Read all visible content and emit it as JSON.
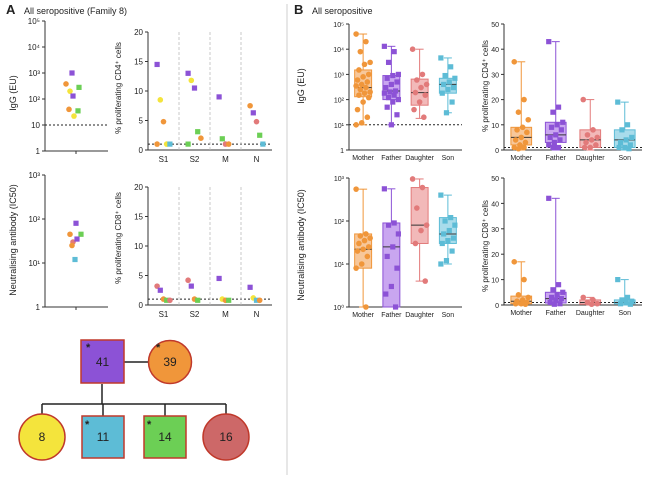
{
  "panelA": {
    "letter": "A",
    "title": "All seropositive (Family 8)",
    "igg": {
      "ylabel": "IgG (EU)",
      "yticks": [
        "1",
        "10",
        "10²",
        "10³",
        "10⁴",
        "10⁵"
      ],
      "points": [
        {
          "member": "Father",
          "value": 1000
        },
        {
          "member": "Son",
          "value": 280
        },
        {
          "member": "Mother",
          "value": 380
        },
        {
          "member": "Daughter",
          "value": 200
        },
        {
          "member": "Father",
          "value": 130
        },
        {
          "member": "Son",
          "value": 35
        },
        {
          "member": "Mother",
          "value": 40
        },
        {
          "member": "Daughter",
          "value": 22
        }
      ]
    },
    "nab": {
      "ylabel": "Neutralising antibody (IC50)",
      "yticks": [
        "1",
        "10¹",
        "10²",
        "10³"
      ],
      "points": [
        {
          "member": "Father",
          "value": 80
        },
        {
          "member": "Mother",
          "value": 45
        },
        {
          "member": "Daughter",
          "value": 30
        },
        {
          "member": "Son",
          "value": 45
        },
        {
          "member": "Father",
          "value": 35
        },
        {
          "member": "Mother",
          "value": 25
        },
        {
          "member": "Son",
          "value": 12
        }
      ]
    },
    "cd4": {
      "ylabel": "% proliferating CD4⁺ cells",
      "yticks": [
        "0",
        "5",
        "10",
        "15",
        "20"
      ],
      "categories": [
        "S1",
        "S2",
        "M",
        "N"
      ],
      "points": [
        {
          "cat": "S1",
          "member": "Father",
          "value": 14.5
        },
        {
          "cat": "S1",
          "member": "Daughter",
          "value": 8.5
        },
        {
          "cat": "S1",
          "member": "Mother",
          "value": 4.8
        },
        {
          "cat": "S1",
          "member": "Daughter",
          "value": 1.0
        },
        {
          "cat": "S1",
          "member": "Son",
          "value": 1.0
        },
        {
          "cat": "S1",
          "member": "Mother",
          "value": 1.0
        },
        {
          "cat": "S2",
          "member": "Father",
          "value": 13.0
        },
        {
          "cat": "S2",
          "member": "Daughter",
          "value": 11.8
        },
        {
          "cat": "S2",
          "member": "Father",
          "value": 10.5
        },
        {
          "cat": "S2",
          "member": "Son",
          "value": 3.1
        },
        {
          "cat": "S2",
          "member": "Mother",
          "value": 2.0
        },
        {
          "cat": "S2",
          "member": "Son",
          "value": 1.0
        },
        {
          "cat": "M",
          "member": "Father",
          "value": 9.0
        },
        {
          "cat": "M",
          "member": "Son",
          "value": 1.9
        },
        {
          "cat": "M",
          "member": "Daughter",
          "value": 1.0
        },
        {
          "cat": "M",
          "member": "Mother",
          "value": 1.0
        },
        {
          "cat": "N",
          "member": "Mother",
          "value": 7.5
        },
        {
          "cat": "N",
          "member": "Father",
          "value": 6.3
        },
        {
          "cat": "N",
          "member": "Daughter",
          "value": 4.8
        },
        {
          "cat": "N",
          "member": "Son",
          "value": 2.5
        },
        {
          "cat": "N",
          "member": "Son",
          "value": 1.0
        }
      ]
    },
    "cd8": {
      "ylabel": "% proliferating CD8⁺ cells",
      "yticks": [
        "0",
        "5",
        "10",
        "15",
        "20"
      ],
      "categories": [
        "S1",
        "S2",
        "M",
        "N"
      ],
      "points": [
        {
          "cat": "S1",
          "member": "Daughter",
          "value": 3.2
        },
        {
          "cat": "S1",
          "member": "Father",
          "value": 2.5
        },
        {
          "cat": "S1",
          "member": "Mother",
          "value": 1.0
        },
        {
          "cat": "S1",
          "member": "Son",
          "value": 0.8
        },
        {
          "cat": "S1",
          "member": "Daughter",
          "value": 0.8
        },
        {
          "cat": "S2",
          "member": "Daughter",
          "value": 4.2
        },
        {
          "cat": "S2",
          "member": "Father",
          "value": 3.2
        },
        {
          "cat": "S2",
          "member": "Mother",
          "value": 1.0
        },
        {
          "cat": "S2",
          "member": "Son",
          "value": 0.8
        },
        {
          "cat": "M",
          "member": "Father",
          "value": 4.5
        },
        {
          "cat": "M",
          "member": "Daughter",
          "value": 1.0
        },
        {
          "cat": "M",
          "member": "Mother",
          "value": 0.8
        },
        {
          "cat": "M",
          "member": "Son",
          "value": 0.8
        },
        {
          "cat": "N",
          "member": "Father",
          "value": 3.0
        },
        {
          "cat": "N",
          "member": "Daughter",
          "value": 1.2
        },
        {
          "cat": "N",
          "member": "Son",
          "value": 0.8
        },
        {
          "cat": "N",
          "member": "Mother",
          "value": 0.8
        }
      ]
    }
  },
  "pedigree": {
    "father": {
      "age": "41",
      "star": "*",
      "color": "#8c52d6"
    },
    "mother": {
      "age": "39",
      "star": "*",
      "color": "#f0963a"
    },
    "children": [
      {
        "age": "8",
        "shape": "circle",
        "star": "",
        "color": "#f4e43c"
      },
      {
        "age": "11",
        "shape": "square",
        "star": "*",
        "color": "#5dbcd6"
      },
      {
        "age": "14",
        "shape": "square",
        "star": "*",
        "color": "#6ccf55"
      },
      {
        "age": "16",
        "shape": "circle",
        "star": "",
        "color": "#cd6868"
      }
    ]
  },
  "panelB": {
    "letter": "B",
    "title": "All seropositive",
    "igg": {
      "ylabel": "IgG (EU)",
      "yticks": [
        "1",
        "10¹",
        "10²",
        "10³",
        "10⁴",
        "10⁵"
      ]
    },
    "nab": {
      "ylabel": "Neutralising antibody (IC50)",
      "yticks": [
        "10⁰",
        "10¹",
        "10²",
        "10³"
      ]
    },
    "cd4": {
      "ylabel": "% proliferating CD4⁺ cells",
      "yticks": [
        "0",
        "10",
        "20",
        "30",
        "40",
        "50"
      ]
    },
    "cd8": {
      "ylabel": "% proliferating CD8⁺ cells",
      "yticks": [
        "0",
        "10",
        "20",
        "30",
        "40",
        "50"
      ]
    }
  },
  "colors": {
    "Mother": "#f0963a",
    "Father": "#8c52d6",
    "Daughter": "#e27a7a",
    "Son": "#5dbcd6",
    "yellow": "#f4e43c",
    "green": "#6ccf55"
  },
  "chart_data": [
    {
      "type": "scatter",
      "panel": "A",
      "title": "All seropositive (Family 8)",
      "ylabel": "IgG (EU)",
      "yscale": "log",
      "ylim": [
        1,
        100000
      ],
      "threshold": 10,
      "values": [
        1000,
        280,
        380,
        200,
        130,
        35,
        40,
        22
      ]
    },
    {
      "type": "scatter",
      "panel": "A",
      "ylabel": "% proliferating CD4⁺ cells",
      "categories": [
        "S1",
        "S2",
        "M",
        "N"
      ],
      "ylim": [
        0,
        20
      ],
      "threshold": 1
    },
    {
      "type": "scatter",
      "panel": "A",
      "ylabel": "Neutralising antibody (IC50)",
      "yscale": "log",
      "ylim": [
        1,
        1000
      ],
      "values": [
        80,
        45,
        30,
        45,
        35,
        25,
        12
      ]
    },
    {
      "type": "scatter",
      "panel": "A",
      "ylabel": "% proliferating CD8⁺ cells",
      "categories": [
        "S1",
        "S2",
        "M",
        "N"
      ],
      "ylim": [
        0,
        20
      ],
      "threshold": 1
    },
    {
      "type": "box",
      "panel": "B",
      "title": "All seropositive",
      "ylabel": "IgG (EU)",
      "yscale": "log",
      "ylim": [
        1,
        100000
      ],
      "threshold": 10,
      "categories": [
        "Mother",
        "Father",
        "Daughter",
        "Son"
      ],
      "series": [
        {
          "name": "Mother",
          "min": 10,
          "q1": 130,
          "median": 300,
          "q3": 1500,
          "max": 40000,
          "points": [
            40000,
            20000,
            8000,
            3000,
            2500,
            1500,
            1000,
            800,
            600,
            500,
            400,
            350,
            300,
            250,
            200,
            180,
            150,
            120,
            80,
            40,
            20,
            12,
            10
          ]
        },
        {
          "name": "Father",
          "min": 10,
          "q1": 100,
          "median": 220,
          "q3": 900,
          "max": 13000,
          "points": [
            13000,
            8000,
            3000,
            1000,
            900,
            700,
            500,
            400,
            300,
            220,
            200,
            180,
            150,
            120,
            100,
            80,
            50,
            25,
            10
          ]
        },
        {
          "name": "Daughter",
          "min": 18,
          "q1": 60,
          "median": 190,
          "q3": 650,
          "max": 10000,
          "points": [
            10000,
            1000,
            600,
            400,
            300,
            190,
            150,
            80,
            40,
            20
          ]
        },
        {
          "name": "Son",
          "min": 30,
          "q1": 180,
          "median": 400,
          "q3": 700,
          "max": 4500,
          "points": [
            4500,
            2000,
            900,
            700,
            500,
            400,
            300,
            250,
            180,
            80,
            30
          ]
        }
      ]
    },
    {
      "type": "box",
      "panel": "B",
      "ylabel": "% proliferating CD4⁺ cells",
      "ylim": [
        0,
        50
      ],
      "threshold": 1,
      "categories": [
        "Mother",
        "Father",
        "Daughter",
        "Son"
      ],
      "series": [
        {
          "name": "Mother",
          "min": 0,
          "q1": 2,
          "median": 5,
          "q3": 9,
          "max": 35,
          "points": [
            35,
            20,
            15,
            12,
            9,
            8,
            7,
            5,
            4,
            3,
            2,
            1,
            1,
            0.5
          ]
        },
        {
          "name": "Father",
          "min": 0,
          "q1": 3,
          "median": 6,
          "q3": 11,
          "max": 43,
          "points": [
            43,
            17,
            15,
            11,
            10,
            9,
            8,
            6,
            5,
            4,
            3,
            2,
            1,
            1
          ]
        },
        {
          "name": "Daughter",
          "min": 0,
          "q1": 1,
          "median": 4,
          "q3": 8,
          "max": 20,
          "points": [
            20,
            8,
            6,
            5,
            4,
            3,
            2,
            1,
            1
          ]
        },
        {
          "name": "Son",
          "min": 0,
          "q1": 1,
          "median": 4,
          "q3": 8,
          "max": 19,
          "points": [
            19,
            10,
            8,
            5,
            4,
            3,
            2,
            1,
            1,
            0.5
          ]
        }
      ]
    },
    {
      "type": "box",
      "panel": "B",
      "ylabel": "Neutralising antibody (IC50)",
      "yscale": "log",
      "ylim": [
        1,
        1000
      ],
      "categories": [
        "Mother",
        "Father",
        "Daughter",
        "Son"
      ],
      "series": [
        {
          "name": "Mother",
          "min": 1,
          "q1": 8,
          "median": 22,
          "q3": 50,
          "max": 550,
          "points": [
            550,
            50,
            45,
            40,
            35,
            30,
            25,
            22,
            20,
            15,
            10,
            8,
            1
          ]
        },
        {
          "name": "Father",
          "min": 1,
          "q1": 1,
          "median": 25,
          "q3": 90,
          "max": 560,
          "points": [
            560,
            90,
            80,
            50,
            25,
            15,
            8,
            3,
            2,
            1
          ]
        },
        {
          "name": "Daughter",
          "min": 4,
          "q1": 30,
          "median": 80,
          "q3": 600,
          "max": 950,
          "points": [
            950,
            600,
            200,
            80,
            60,
            30,
            4
          ]
        },
        {
          "name": "Son",
          "min": 10,
          "q1": 30,
          "median": 50,
          "q3": 120,
          "max": 400,
          "points": [
            400,
            120,
            100,
            80,
            60,
            50,
            40,
            35,
            30,
            20,
            12,
            10
          ]
        }
      ]
    },
    {
      "type": "box",
      "panel": "B",
      "ylabel": "% proliferating CD8⁺ cells",
      "ylim": [
        0,
        50
      ],
      "threshold": 1,
      "categories": [
        "Mother",
        "Father",
        "Daughter",
        "Son"
      ],
      "series": [
        {
          "name": "Mother",
          "min": 0,
          "q1": 0.5,
          "median": 1.5,
          "q3": 3.5,
          "max": 17,
          "points": [
            17,
            10,
            4,
            3,
            2,
            1.5,
            1,
            0.5,
            0.5,
            0.3
          ]
        },
        {
          "name": "Father",
          "min": 0,
          "q1": 0.8,
          "median": 2.5,
          "q3": 5,
          "max": 42,
          "points": [
            42,
            8,
            6,
            5,
            4,
            3,
            2.5,
            2,
            1,
            0.5,
            0.3
          ]
        },
        {
          "name": "Daughter",
          "min": 0,
          "q1": 0.3,
          "median": 1,
          "q3": 2,
          "max": 3,
          "points": [
            3,
            2,
            1,
            0.5,
            0.3
          ]
        },
        {
          "name": "Son",
          "min": 0,
          "q1": 0.5,
          "median": 1,
          "q3": 2,
          "max": 10,
          "points": [
            10,
            3,
            2,
            1.5,
            1,
            0.5,
            0.3
          ]
        }
      ]
    }
  ]
}
